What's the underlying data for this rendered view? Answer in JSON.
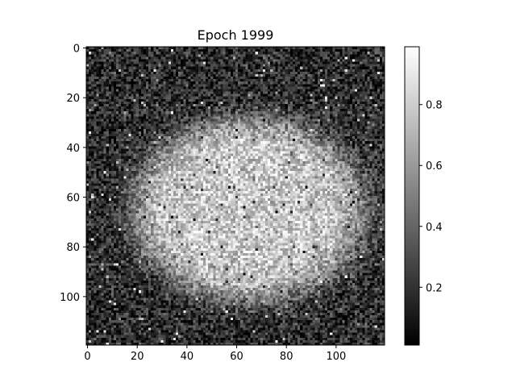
{
  "chart_data": {
    "type": "heatmap",
    "title": "Epoch 1999",
    "xlabel": "",
    "ylabel": "",
    "grid": 120,
    "xlim": [
      0,
      120
    ],
    "ylim": [
      120,
      0
    ],
    "x_ticks": [
      0,
      20,
      40,
      60,
      80,
      100
    ],
    "y_ticks": [
      0,
      20,
      40,
      60,
      80,
      100
    ],
    "x_tick_labels": [
      "0",
      "20",
      "40",
      "60",
      "80",
      "100"
    ],
    "y_tick_labels": [
      "0",
      "20",
      "40",
      "60",
      "80",
      "100"
    ],
    "colormap": "gray",
    "value_range": [
      0.01,
      0.99
    ],
    "colorbar": {
      "ticks": [
        0.2,
        0.4,
        0.6,
        0.8
      ],
      "tick_labels": [
        "0.2",
        "0.4",
        "0.6",
        "0.8"
      ]
    },
    "pattern": {
      "shape": "noisy ellipse",
      "center": [
        65,
        65
      ],
      "radius_x": 46,
      "radius_y": 36,
      "inside_mean": 0.78,
      "outside_mean": 0.18,
      "noise": 0.22
    },
    "axis_color": "#000000"
  }
}
